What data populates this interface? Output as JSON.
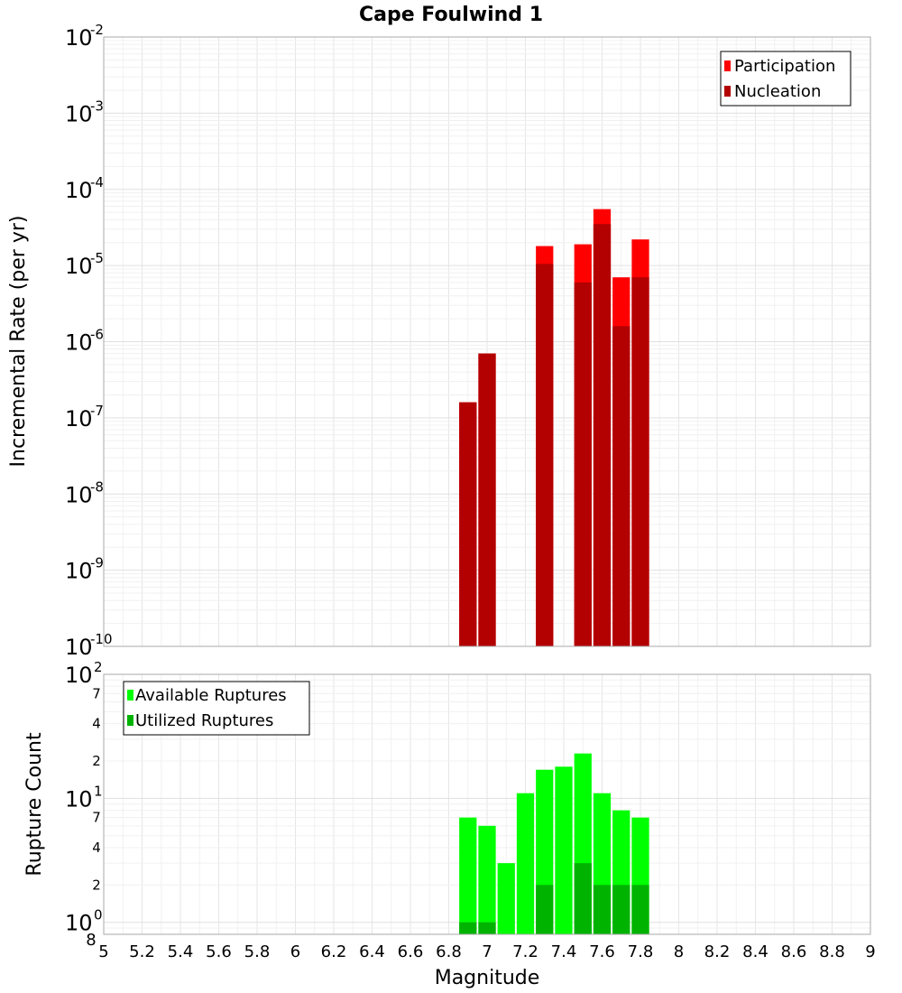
{
  "chart_data": [
    {
      "type": "bar",
      "title": "Cape Foulwind 1",
      "xlabel": "Magnitude",
      "ylabel": "Incremental Rate (per yr)",
      "yscale": "log",
      "xlim": [
        5,
        9
      ],
      "ylim": [
        1e-10,
        0.01
      ],
      "y_tick_bases": [
        "10",
        "10",
        "10",
        "10",
        "10",
        "10",
        "10",
        "10",
        "10"
      ],
      "y_tick_exps": [
        "-10",
        "-9",
        "-8",
        "-7",
        "-6",
        "-5",
        "-4",
        "-3",
        "-2"
      ],
      "legend_position": "top-right",
      "x": [
        6.9,
        7.0,
        7.3,
        7.5,
        7.6,
        7.7,
        7.8
      ],
      "series": [
        {
          "name": "Participation",
          "color": "#ff0000",
          "values": [
            1.6e-07,
            7e-07,
            1.8e-05,
            1.9e-05,
            5.5e-05,
            7e-06,
            2.2e-05
          ]
        },
        {
          "name": "Nucleation",
          "color": "#b30000",
          "values": [
            1.6e-07,
            7e-07,
            1.05e-05,
            6e-06,
            3.5e-05,
            1.6e-06,
            7e-06
          ]
        }
      ]
    },
    {
      "type": "bar",
      "xlabel": "Magnitude",
      "ylabel": "Rupture Count",
      "yscale": "log",
      "xlim": [
        5,
        9
      ],
      "ylim": [
        0.8,
        100
      ],
      "x_ticks": [
        "5",
        "5.2",
        "5.4",
        "5.6",
        "5.8",
        "6",
        "6.2",
        "6.4",
        "6.6",
        "6.8",
        "7",
        "7.2",
        "7.4",
        "7.6",
        "7.8",
        "8",
        "8.2",
        "8.4",
        "8.6",
        "8.8",
        "9"
      ],
      "y_major_bases": [
        "10",
        "10",
        "10"
      ],
      "y_major_exps": [
        "0",
        "1",
        "2"
      ],
      "y_minor_labels": [
        "8",
        "2",
        "4",
        "7",
        "2",
        "4",
        "7"
      ],
      "legend_position": "top-left",
      "x": [
        6.9,
        7.0,
        7.1,
        7.2,
        7.3,
        7.4,
        7.5,
        7.6,
        7.7,
        7.8
      ],
      "series": [
        {
          "name": "Available Ruptures",
          "color": "#00ff00",
          "values": [
            7,
            6,
            3,
            11,
            17,
            18,
            23,
            11,
            8,
            7
          ]
        },
        {
          "name": "Utilized Ruptures",
          "color": "#00b300",
          "values": [
            1,
            1,
            0,
            0,
            2,
            0,
            3,
            2,
            2,
            2
          ]
        }
      ]
    }
  ]
}
